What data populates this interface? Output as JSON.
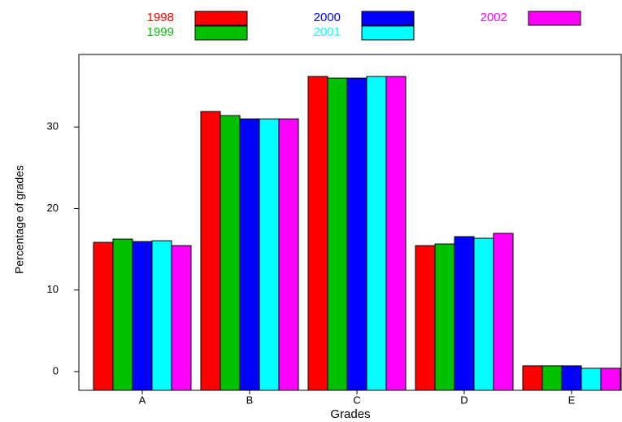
{
  "chart_data": {
    "type": "bar",
    "x_label": "Grades",
    "y_label": "Percentage of grades",
    "categories": [
      "A",
      "B",
      "C",
      "D",
      "E"
    ],
    "series": [
      {
        "name": "1998",
        "color": "#ff0000",
        "values": [
          15.85,
          31.9,
          36.2,
          15.45,
          0.7
        ]
      },
      {
        "name": "1999",
        "color": "#00c000",
        "values": [
          16.25,
          31.4,
          36.0,
          15.65,
          0.7
        ]
      },
      {
        "name": "2000",
        "color": "#0000ff",
        "values": [
          15.95,
          31.0,
          36.0,
          16.55,
          0.7
        ]
      },
      {
        "name": "2001",
        "color": "#00ffff",
        "values": [
          16.05,
          31.0,
          36.2,
          16.35,
          0.4
        ]
      },
      {
        "name": "2002",
        "color": "#ff00ff",
        "values": [
          15.45,
          31.0,
          36.2,
          16.95,
          0.4
        ]
      }
    ],
    "ylim": [
      -2.3,
      38.9
    ],
    "yticks": [
      0,
      10,
      20,
      30
    ]
  }
}
